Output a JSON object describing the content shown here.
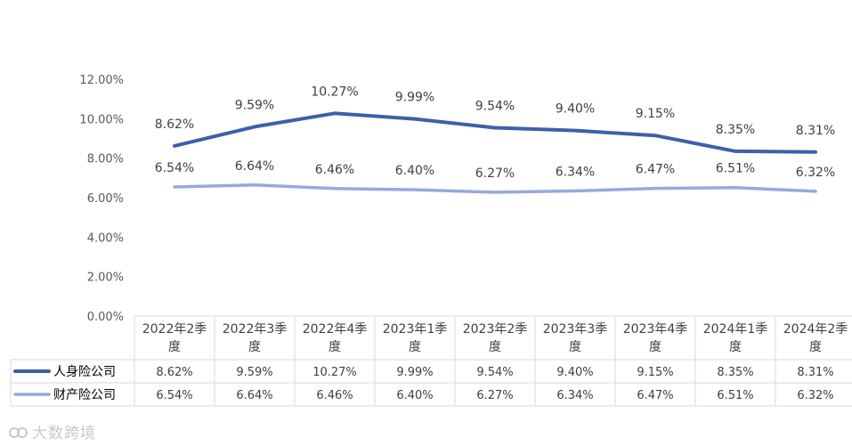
{
  "chart_data": {
    "type": "line",
    "categories": [
      "2022年2季度",
      "2022年3季度",
      "2022年4季度",
      "2023年1季度",
      "2023年2季度",
      "2023年3季度",
      "2023年4季度",
      "2024年1季度",
      "2024年2季度"
    ],
    "series": [
      {
        "name": "人身险公司",
        "color": "#3F5FA8",
        "values": [
          8.62,
          9.59,
          10.27,
          9.99,
          9.54,
          9.4,
          9.15,
          8.35,
          8.31
        ],
        "labels": [
          "8.62%",
          "9.59%",
          "10.27%",
          "9.99%",
          "9.54%",
          "9.40%",
          "9.15%",
          "8.35%",
          "8.31%"
        ]
      },
      {
        "name": "财产险公司",
        "color": "#97A8DC",
        "values": [
          6.54,
          6.64,
          6.46,
          6.4,
          6.27,
          6.34,
          6.47,
          6.51,
          6.32
        ],
        "labels": [
          "6.54%",
          "6.64%",
          "6.46%",
          "6.40%",
          "6.27%",
          "6.34%",
          "6.47%",
          "6.51%",
          "6.32%"
        ]
      }
    ],
    "ylim": [
      0,
      12
    ],
    "yticks": [
      "0.00%",
      "2.00%",
      "4.00%",
      "6.00%",
      "8.00%",
      "10.00%",
      "12.00%"
    ],
    "legend": "data-table"
  },
  "watermark": "大数跨境"
}
